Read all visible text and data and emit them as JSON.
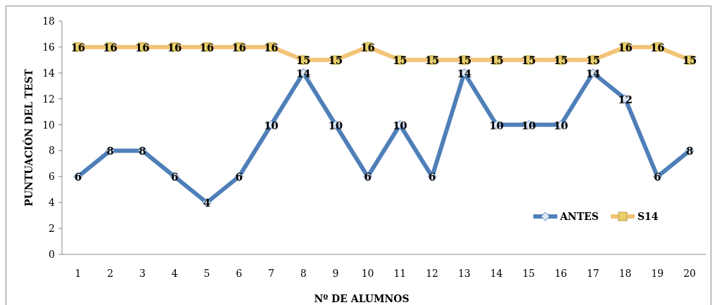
{
  "chart_data": {
    "type": "line",
    "xlabel": "Nº DE ALUMNOS",
    "ylabel": "PUNTUACIÓN DEL TEST",
    "categories": [
      "1",
      "2",
      "3",
      "4",
      "5",
      "6",
      "7",
      "8",
      "9",
      "10",
      "11",
      "12",
      "13",
      "14",
      "15",
      "16",
      "17",
      "18",
      "19",
      "20"
    ],
    "series": [
      {
        "name": "ANTES",
        "color": "#4f7fb8",
        "marker": "diamond",
        "values": [
          6,
          8,
          8,
          6,
          4,
          6,
          10,
          14,
          10,
          6,
          10,
          6,
          14,
          10,
          10,
          10,
          14,
          12,
          6,
          8
        ]
      },
      {
        "name": "S14",
        "color": "#f2c477",
        "marker": "square",
        "values": [
          16,
          16,
          16,
          16,
          16,
          16,
          16,
          15,
          15,
          16,
          15,
          15,
          15,
          15,
          15,
          15,
          15,
          16,
          16,
          15
        ]
      }
    ],
    "ylim": [
      0,
      18
    ],
    "yticks": [
      0,
      2,
      4,
      6,
      8,
      10,
      12,
      14,
      16,
      18
    ],
    "grid": false,
    "legend": "bottom right",
    "data_labels": true
  }
}
